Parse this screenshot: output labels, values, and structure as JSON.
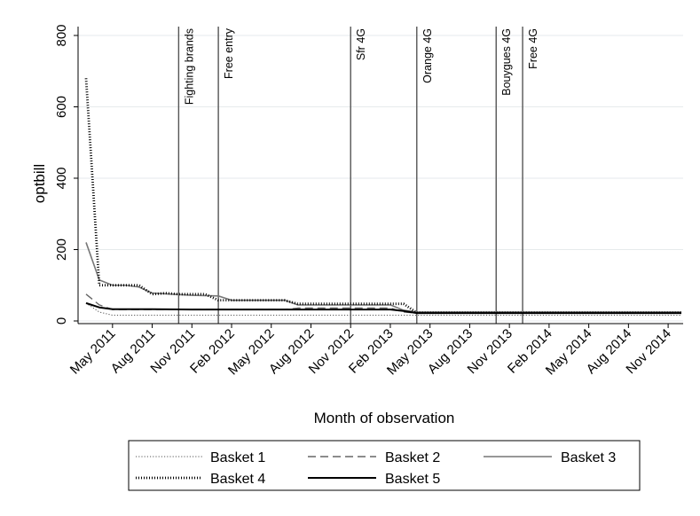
{
  "chart_data": {
    "type": "line",
    "title": "",
    "xlabel": "Month of observation",
    "ylabel": "optbill",
    "ylim": [
      0,
      800
    ],
    "yticks": [
      "0",
      "200",
      "400",
      "600",
      "800"
    ],
    "xticks": [
      {
        "label": "May 2011",
        "x": "2011-05"
      },
      {
        "label": "Aug 2011",
        "x": "2011-08"
      },
      {
        "label": "Nov 2011",
        "x": "2011-11"
      },
      {
        "label": "Feb 2012",
        "x": "2012-02"
      },
      {
        "label": "May 2012",
        "x": "2012-05"
      },
      {
        "label": "Aug 2012",
        "x": "2012-08"
      },
      {
        "label": "Nov 2012",
        "x": "2012-11"
      },
      {
        "label": "Feb 2013",
        "x": "2013-02"
      },
      {
        "label": "May 2013",
        "x": "2013-05"
      },
      {
        "label": "Aug 2013",
        "x": "2013-08"
      },
      {
        "label": "Nov 2013",
        "x": "2013-11"
      },
      {
        "label": "Feb 2014",
        "x": "2014-02"
      },
      {
        "label": "May 2014",
        "x": "2014-05"
      },
      {
        "label": "Aug 2014",
        "x": "2014-08"
      },
      {
        "label": "Nov 2014",
        "x": "2014-11"
      }
    ],
    "grid": true,
    "legend_placement": "bottom",
    "events": [
      {
        "label": "Fighting brands",
        "x": "2011-10"
      },
      {
        "label": "Free entry",
        "x": "2012-01"
      },
      {
        "label": "Sfr 4G",
        "x": "2012-11"
      },
      {
        "label": "Orange 4G",
        "x": "2013-04"
      },
      {
        "label": "Bouygues 4G",
        "x": "2013-10"
      },
      {
        "label": "Free 4G",
        "x": "2013-12"
      }
    ],
    "series": [
      {
        "name": "Basket 1",
        "style": "dotted-thin",
        "points": [
          [
            "2011-03",
            50
          ],
          [
            "2011-04",
            25
          ],
          [
            "2011-05",
            16
          ],
          [
            "2011-08",
            16
          ],
          [
            "2011-11",
            16
          ],
          [
            "2012-02",
            16
          ],
          [
            "2012-05",
            16
          ],
          [
            "2012-08",
            16
          ],
          [
            "2012-11",
            16
          ],
          [
            "2013-02",
            16
          ],
          [
            "2013-04",
            16
          ],
          [
            "2013-08",
            16
          ],
          [
            "2013-11",
            16
          ],
          [
            "2014-02",
            16
          ],
          [
            "2014-05",
            16
          ],
          [
            "2014-08",
            16
          ],
          [
            "2014-12",
            16
          ]
        ]
      },
      {
        "name": "Basket 2",
        "style": "dashed",
        "points": [
          [
            "2011-03",
            75
          ],
          [
            "2011-04",
            45
          ],
          [
            "2011-05",
            32
          ],
          [
            "2011-08",
            32
          ],
          [
            "2011-11",
            32
          ],
          [
            "2012-02",
            32
          ],
          [
            "2012-05",
            32
          ],
          [
            "2012-06",
            32
          ],
          [
            "2012-07",
            36
          ],
          [
            "2013-02",
            36
          ],
          [
            "2013-03",
            25
          ],
          [
            "2013-04",
            22
          ],
          [
            "2013-08",
            22
          ],
          [
            "2013-11",
            22
          ],
          [
            "2014-02",
            22
          ],
          [
            "2014-05",
            22
          ],
          [
            "2014-08",
            22
          ],
          [
            "2014-12",
            22
          ]
        ]
      },
      {
        "name": "Basket 3",
        "style": "solid-gray",
        "points": [
          [
            "2011-03",
            220
          ],
          [
            "2011-04",
            115
          ],
          [
            "2011-05",
            100
          ],
          [
            "2011-06",
            100
          ],
          [
            "2011-07",
            95
          ],
          [
            "2011-08",
            78
          ],
          [
            "2011-11",
            72
          ],
          [
            "2012-01",
            70
          ],
          [
            "2012-02",
            58
          ],
          [
            "2012-06",
            58
          ],
          [
            "2012-07",
            45
          ],
          [
            "2013-02",
            45
          ],
          [
            "2013-03",
            30
          ],
          [
            "2013-04",
            25
          ],
          [
            "2013-08",
            25
          ],
          [
            "2013-11",
            25
          ],
          [
            "2014-02",
            25
          ],
          [
            "2014-05",
            25
          ],
          [
            "2014-08",
            25
          ],
          [
            "2014-12",
            25
          ]
        ]
      },
      {
        "name": "Basket 4",
        "style": "dotted-thick",
        "points": [
          [
            "2011-03",
            680
          ],
          [
            "2011-04",
            100
          ],
          [
            "2011-05",
            100
          ],
          [
            "2011-06",
            100
          ],
          [
            "2011-07",
            100
          ],
          [
            "2011-08",
            75
          ],
          [
            "2011-09",
            78
          ],
          [
            "2011-10",
            75
          ],
          [
            "2011-11",
            75
          ],
          [
            "2011-12",
            75
          ],
          [
            "2012-01",
            58
          ],
          [
            "2012-02",
            58
          ],
          [
            "2012-06",
            58
          ],
          [
            "2012-07",
            48
          ],
          [
            "2013-02",
            48
          ],
          [
            "2013-03",
            48
          ],
          [
            "2013-04",
            23
          ],
          [
            "2013-08",
            23
          ],
          [
            "2013-11",
            23
          ],
          [
            "2014-02",
            23
          ],
          [
            "2014-05",
            23
          ],
          [
            "2014-08",
            23
          ],
          [
            "2014-12",
            23
          ]
        ]
      },
      {
        "name": "Basket 5",
        "style": "solid-black",
        "points": [
          [
            "2011-03",
            50
          ],
          [
            "2011-04",
            38
          ],
          [
            "2011-05",
            33
          ],
          [
            "2011-08",
            33
          ],
          [
            "2011-11",
            32
          ],
          [
            "2012-02",
            32
          ],
          [
            "2012-05",
            32
          ],
          [
            "2012-08",
            32
          ],
          [
            "2012-11",
            32
          ],
          [
            "2013-02",
            32
          ],
          [
            "2013-03",
            28
          ],
          [
            "2013-04",
            22
          ],
          [
            "2013-08",
            22
          ],
          [
            "2013-11",
            22
          ],
          [
            "2014-02",
            22
          ],
          [
            "2014-05",
            22
          ],
          [
            "2014-08",
            22
          ],
          [
            "2014-12",
            22
          ]
        ]
      }
    ]
  }
}
